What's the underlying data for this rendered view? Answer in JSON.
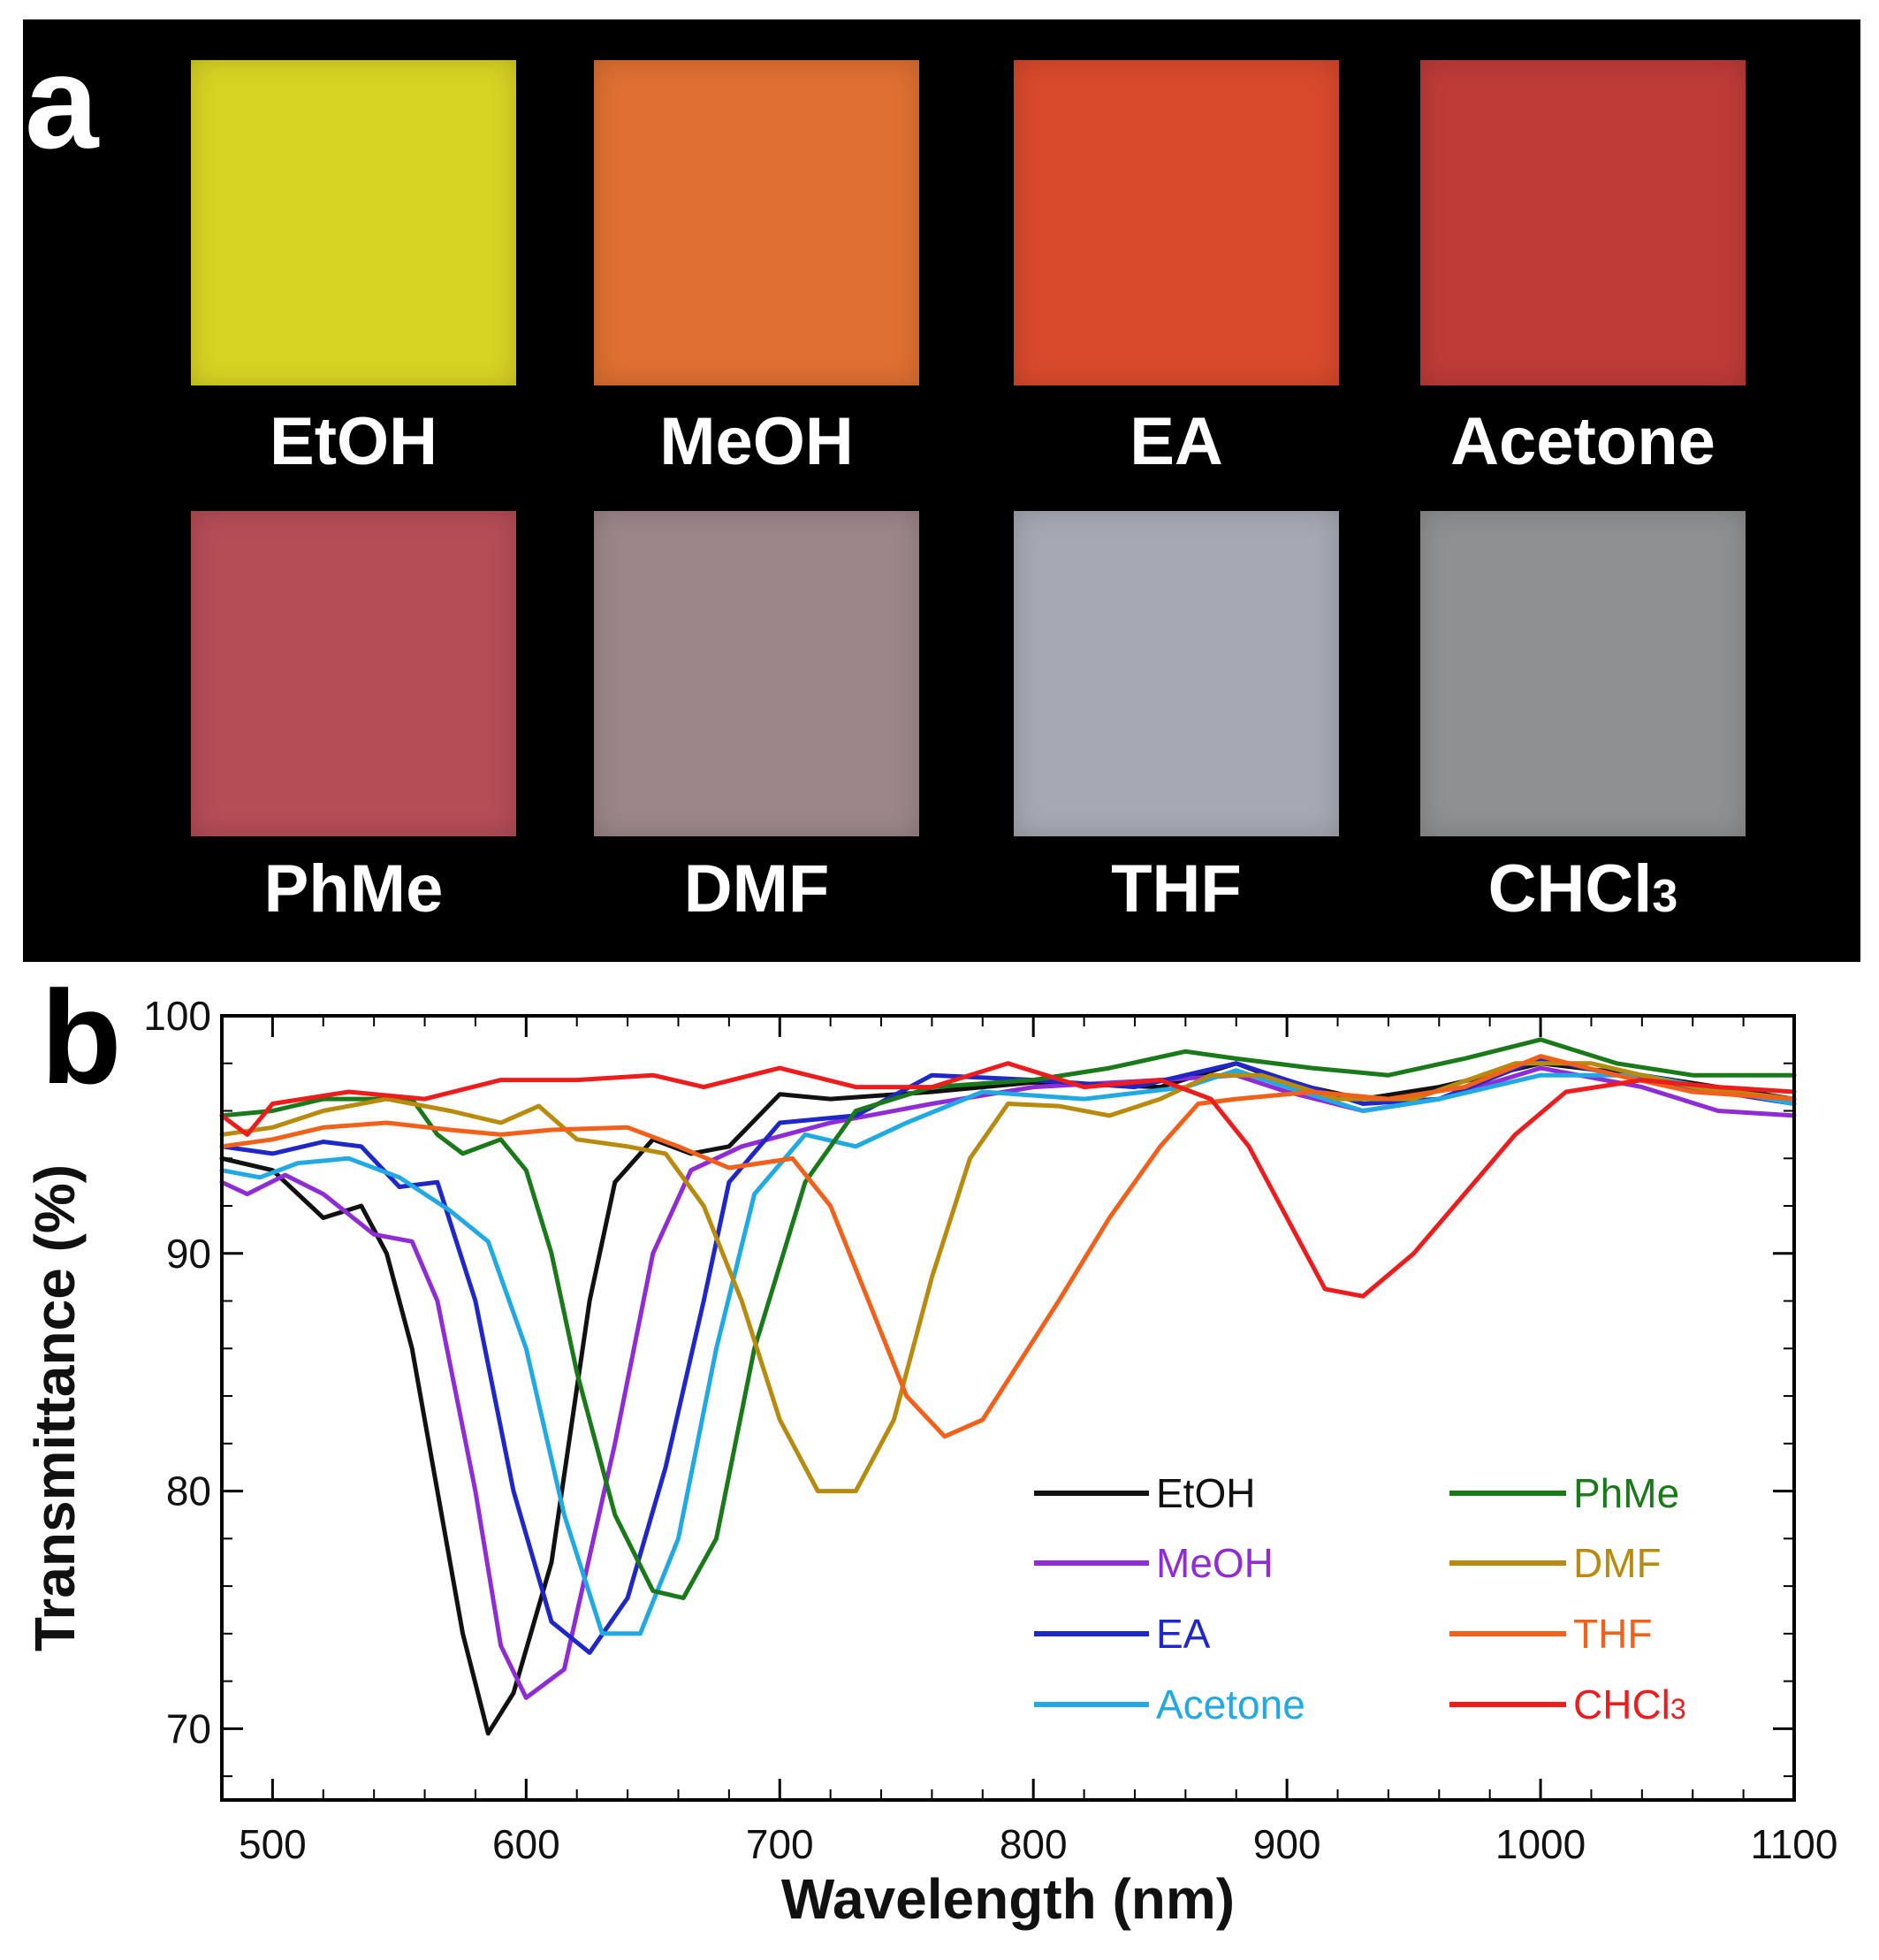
{
  "panel_a": {
    "letter": "a",
    "samples": [
      {
        "label": "EtOH",
        "color": "#d8d424"
      },
      {
        "label": "MeOH",
        "color": "#df7032"
      },
      {
        "label": "EA",
        "color": "#d94a2c"
      },
      {
        "label": "Acetone",
        "color": "#bf3b38"
      },
      {
        "label": "PhMe",
        "color": "#b54d57"
      },
      {
        "label": "DMF",
        "color": "#9c8689"
      },
      {
        "label": "THF",
        "color": "#a6a9b3"
      },
      {
        "label": "CHCl",
        "label_sub": "3",
        "color": "#8f9091"
      }
    ]
  },
  "panel_b": {
    "letter": "b"
  },
  "chart_data": {
    "type": "line",
    "xlabel": "Wavelength (nm)",
    "ylabel": "Transmittance (%)",
    "xlim": [
      480,
      1100
    ],
    "ylim": [
      67,
      100
    ],
    "xticks": [
      500,
      600,
      700,
      800,
      900,
      1000,
      1100
    ],
    "yticks": [
      70,
      80,
      90,
      100
    ],
    "legend_position": "bottom-right",
    "series": [
      {
        "name": "EtOH",
        "color": "#111111",
        "points": [
          [
            480,
            94
          ],
          [
            500,
            93.5
          ],
          [
            520,
            91.5
          ],
          [
            535,
            92
          ],
          [
            545,
            90
          ],
          [
            555,
            86
          ],
          [
            565,
            80
          ],
          [
            575,
            74
          ],
          [
            585,
            69.8
          ],
          [
            595,
            71.5
          ],
          [
            610,
            77
          ],
          [
            625,
            88
          ],
          [
            635,
            93
          ],
          [
            650,
            94.8
          ],
          [
            665,
            94.2
          ],
          [
            680,
            94.5
          ],
          [
            700,
            96.7
          ],
          [
            720,
            96.5
          ],
          [
            760,
            96.8
          ],
          [
            800,
            97.2
          ],
          [
            850,
            97
          ],
          [
            880,
            98
          ],
          [
            900,
            97.2
          ],
          [
            930,
            96.5
          ],
          [
            960,
            97
          ],
          [
            1000,
            98
          ],
          [
            1040,
            97.5
          ],
          [
            1100,
            96.5
          ]
        ]
      },
      {
        "name": "MeOH",
        "color": "#8f2cd6",
        "points": [
          [
            480,
            93
          ],
          [
            490,
            92.5
          ],
          [
            505,
            93.3
          ],
          [
            520,
            92.5
          ],
          [
            540,
            90.8
          ],
          [
            555,
            90.5
          ],
          [
            565,
            88
          ],
          [
            580,
            80
          ],
          [
            590,
            73.5
          ],
          [
            600,
            71.3
          ],
          [
            615,
            72.5
          ],
          [
            635,
            82
          ],
          [
            650,
            90
          ],
          [
            665,
            93.5
          ],
          [
            685,
            94.5
          ],
          [
            720,
            95.5
          ],
          [
            760,
            96.3
          ],
          [
            800,
            97
          ],
          [
            850,
            97.3
          ],
          [
            880,
            97.5
          ],
          [
            900,
            96.8
          ],
          [
            930,
            96
          ],
          [
            960,
            96.5
          ],
          [
            1000,
            97.8
          ],
          [
            1040,
            97
          ],
          [
            1070,
            96
          ],
          [
            1100,
            95.8
          ]
        ]
      },
      {
        "name": "EA",
        "color": "#1f27c8",
        "points": [
          [
            480,
            94.5
          ],
          [
            500,
            94.2
          ],
          [
            520,
            94.7
          ],
          [
            535,
            94.5
          ],
          [
            550,
            92.8
          ],
          [
            565,
            93
          ],
          [
            580,
            88
          ],
          [
            595,
            80
          ],
          [
            610,
            74.5
          ],
          [
            625,
            73.2
          ],
          [
            640,
            75.5
          ],
          [
            655,
            81
          ],
          [
            670,
            88
          ],
          [
            680,
            93
          ],
          [
            700,
            95.5
          ],
          [
            730,
            95.8
          ],
          [
            760,
            97.5
          ],
          [
            800,
            97.3
          ],
          [
            840,
            97
          ],
          [
            880,
            98
          ],
          [
            900,
            97.3
          ],
          [
            930,
            96.3
          ],
          [
            960,
            96.5
          ],
          [
            1000,
            98.2
          ],
          [
            1040,
            97.3
          ],
          [
            1100,
            96.3
          ]
        ]
      },
      {
        "name": "Acetone",
        "color": "#21a9e3",
        "points": [
          [
            480,
            93.5
          ],
          [
            495,
            93.2
          ],
          [
            510,
            93.8
          ],
          [
            530,
            94
          ],
          [
            550,
            93.2
          ],
          [
            570,
            91.8
          ],
          [
            585,
            90.5
          ],
          [
            600,
            86
          ],
          [
            615,
            79
          ],
          [
            630,
            74
          ],
          [
            645,
            74
          ],
          [
            660,
            78
          ],
          [
            675,
            86
          ],
          [
            690,
            92.5
          ],
          [
            710,
            95
          ],
          [
            730,
            94.5
          ],
          [
            750,
            95.5
          ],
          [
            780,
            96.8
          ],
          [
            820,
            96.5
          ],
          [
            860,
            97
          ],
          [
            880,
            97.7
          ],
          [
            900,
            97
          ],
          [
            930,
            96
          ],
          [
            960,
            96.5
          ],
          [
            1000,
            97.5
          ],
          [
            1040,
            97.5
          ],
          [
            1100,
            96.3
          ]
        ]
      },
      {
        "name": "PhMe",
        "color": "#1a7a1a",
        "points": [
          [
            480,
            95.8
          ],
          [
            500,
            96
          ],
          [
            520,
            96.5
          ],
          [
            540,
            96.5
          ],
          [
            555,
            96.5
          ],
          [
            565,
            95
          ],
          [
            575,
            94.2
          ],
          [
            590,
            94.8
          ],
          [
            600,
            93.5
          ],
          [
            610,
            90
          ],
          [
            620,
            85
          ],
          [
            635,
            79
          ],
          [
            650,
            75.8
          ],
          [
            662,
            75.5
          ],
          [
            675,
            78
          ],
          [
            690,
            86
          ],
          [
            710,
            93
          ],
          [
            730,
            96
          ],
          [
            760,
            97
          ],
          [
            800,
            97.3
          ],
          [
            830,
            97.8
          ],
          [
            860,
            98.5
          ],
          [
            880,
            98.2
          ],
          [
            910,
            97.8
          ],
          [
            940,
            97.5
          ],
          [
            970,
            98.2
          ],
          [
            1000,
            99
          ],
          [
            1030,
            98
          ],
          [
            1060,
            97.5
          ],
          [
            1100,
            97.5
          ]
        ]
      },
      {
        "name": "DMF",
        "color": "#b88b0e",
        "points": [
          [
            480,
            95
          ],
          [
            500,
            95.3
          ],
          [
            520,
            96
          ],
          [
            545,
            96.5
          ],
          [
            570,
            96
          ],
          [
            590,
            95.5
          ],
          [
            605,
            96.2
          ],
          [
            620,
            94.8
          ],
          [
            640,
            94.5
          ],
          [
            655,
            94.2
          ],
          [
            670,
            92
          ],
          [
            685,
            88
          ],
          [
            700,
            83
          ],
          [
            715,
            80
          ],
          [
            730,
            80
          ],
          [
            745,
            83
          ],
          [
            760,
            89
          ],
          [
            775,
            94
          ],
          [
            790,
            96.3
          ],
          [
            810,
            96.2
          ],
          [
            830,
            95.8
          ],
          [
            850,
            96.5
          ],
          [
            870,
            97.5
          ],
          [
            890,
            97.5
          ],
          [
            920,
            96.5
          ],
          [
            950,
            96.5
          ],
          [
            990,
            98
          ],
          [
            1020,
            98
          ],
          [
            1060,
            97
          ],
          [
            1100,
            96.5
          ]
        ]
      },
      {
        "name": "THF",
        "color": "#f2601a",
        "points": [
          [
            480,
            94.5
          ],
          [
            500,
            94.8
          ],
          [
            520,
            95.3
          ],
          [
            545,
            95.5
          ],
          [
            570,
            95.2
          ],
          [
            590,
            95
          ],
          [
            610,
            95.2
          ],
          [
            640,
            95.3
          ],
          [
            660,
            94.5
          ],
          [
            680,
            93.6
          ],
          [
            705,
            94
          ],
          [
            720,
            92
          ],
          [
            735,
            88
          ],
          [
            750,
            84
          ],
          [
            765,
            82.3
          ],
          [
            780,
            83
          ],
          [
            795,
            85.5
          ],
          [
            810,
            88
          ],
          [
            830,
            91.5
          ],
          [
            850,
            94.5
          ],
          [
            865,
            96.3
          ],
          [
            880,
            96.5
          ],
          [
            910,
            96.8
          ],
          [
            940,
            96.5
          ],
          [
            970,
            97
          ],
          [
            1000,
            98.3
          ],
          [
            1030,
            97.5
          ],
          [
            1060,
            96.8
          ],
          [
            1100,
            96.5
          ]
        ]
      },
      {
        "name": "CHCl3",
        "color": "#ee1c1c",
        "points": [
          [
            480,
            95.8
          ],
          [
            490,
            95
          ],
          [
            500,
            96.3
          ],
          [
            530,
            96.8
          ],
          [
            560,
            96.5
          ],
          [
            590,
            97.3
          ],
          [
            620,
            97.3
          ],
          [
            650,
            97.5
          ],
          [
            670,
            97
          ],
          [
            700,
            97.8
          ],
          [
            730,
            97
          ],
          [
            760,
            97
          ],
          [
            790,
            98
          ],
          [
            820,
            97
          ],
          [
            850,
            97.3
          ],
          [
            870,
            96.5
          ],
          [
            885,
            94.5
          ],
          [
            900,
            91.5
          ],
          [
            915,
            88.5
          ],
          [
            930,
            88.2
          ],
          [
            950,
            90
          ],
          [
            970,
            92.5
          ],
          [
            990,
            95
          ],
          [
            1010,
            96.8
          ],
          [
            1040,
            97.3
          ],
          [
            1070,
            97
          ],
          [
            1100,
            96.8
          ]
        ]
      }
    ]
  }
}
